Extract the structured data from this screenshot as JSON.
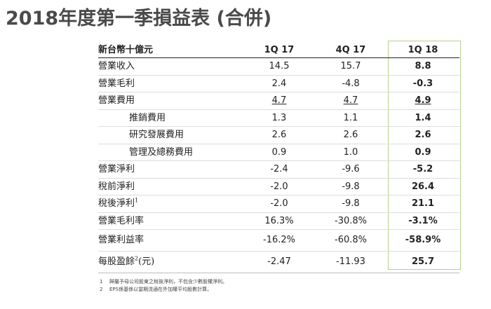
{
  "title": "2018年度第一季損益表 (合併)",
  "table": {
    "header": [
      "新台幣十億元",
      "1Q 17",
      "4Q 17",
      "1Q 18"
    ],
    "rows": [
      {
        "label": "營業收入",
        "sup": "",
        "values": [
          "14.5",
          "15.7",
          "8.8"
        ],
        "indent": false,
        "underline": false
      },
      {
        "label": "營業毛利",
        "sup": "",
        "values": [
          "2.4",
          "-4.8",
          "-0.3"
        ],
        "indent": false,
        "underline": false
      },
      {
        "label": "營業費用",
        "sup": "",
        "values": [
          "4.7",
          "4.7",
          "4.9"
        ],
        "indent": false,
        "underline": true
      },
      {
        "label": "推銷費用",
        "sup": "",
        "values": [
          "1.3",
          "1.1",
          "1.4"
        ],
        "indent": true,
        "underline": false
      },
      {
        "label": "研究發展費用",
        "sup": "",
        "values": [
          "2.6",
          "2.6",
          "2.6"
        ],
        "indent": true,
        "underline": false
      },
      {
        "label": "管理及總務費用",
        "sup": "",
        "values": [
          "0.9",
          "1.0",
          "0.9"
        ],
        "indent": true,
        "underline": false
      },
      {
        "label": "營業淨利",
        "sup": "",
        "values": [
          "-2.4",
          "-9.6",
          "-5.2"
        ],
        "indent": false,
        "underline": false
      },
      {
        "label": "稅前淨利",
        "sup": "",
        "values": [
          "-2.0",
          "-9.8",
          "26.4"
        ],
        "indent": false,
        "underline": false
      },
      {
        "label": "稅後淨利",
        "sup": "1",
        "values": [
          "-2.0",
          "-9.8",
          "21.1"
        ],
        "indent": false,
        "underline": false
      },
      {
        "label": "營業毛利率",
        "sup": "",
        "values": [
          "16.3%",
          "-30.8%",
          "-3.1%"
        ],
        "indent": false,
        "underline": false
      },
      {
        "label": "營業利益率",
        "sup": "",
        "values": [
          "-16.2%",
          "-60.8%",
          "-58.9%"
        ],
        "indent": false,
        "underline": false
      },
      {
        "label": "每股盈餘",
        "sup": "2",
        "suffix": "(元)",
        "values": [
          "-2.47",
          "-11.93",
          "25.7"
        ],
        "indent": false,
        "underline": false
      }
    ]
  },
  "notes": [
    {
      "num": "1",
      "text": "歸屬予母公司股東之稅後淨利，不包含少數股權淨利。"
    },
    {
      "num": "2",
      "text": "EPS係基係以當期流通在外加權平均股數計算。"
    }
  ],
  "colors": {
    "highlight_border": "#b8cf8c",
    "title": "#4a4a4a"
  }
}
